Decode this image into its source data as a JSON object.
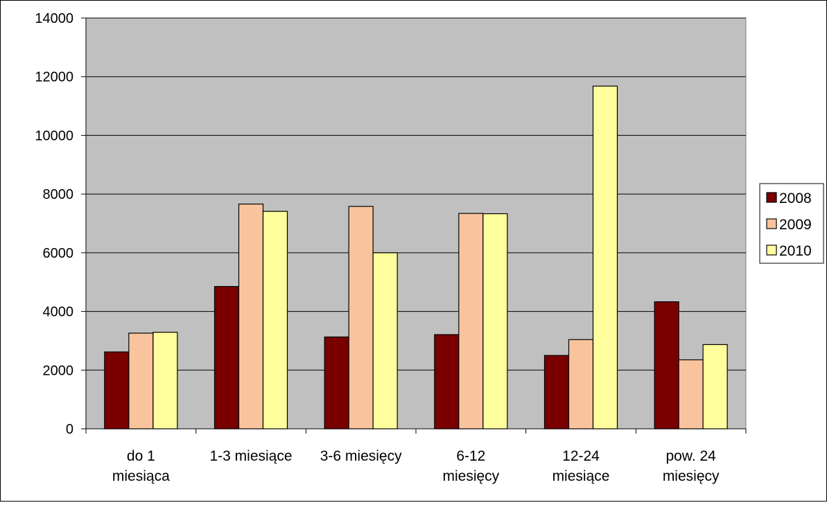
{
  "chart_data": {
    "type": "bar",
    "title": "",
    "xlabel": "",
    "ylabel": "",
    "ylim": [
      0,
      14000
    ],
    "yticks": [
      0,
      2000,
      4000,
      6000,
      8000,
      10000,
      12000,
      14000
    ],
    "grid": true,
    "legend_position": "right",
    "categories": [
      [
        "do 1",
        "miesiąca"
      ],
      [
        "1-3 miesiące"
      ],
      [
        "3-6 miesięcy"
      ],
      [
        "6-12",
        "miesięcy"
      ],
      [
        "12-24",
        "miesiące"
      ],
      [
        "pow. 24",
        "miesięcy"
      ]
    ],
    "series": [
      {
        "name": "2008",
        "color": "#7a0000",
        "values": [
          2620,
          4850,
          3130,
          3210,
          2500,
          4330
        ]
      },
      {
        "name": "2009",
        "color": "#f9c49d",
        "values": [
          3260,
          7660,
          7580,
          7340,
          3040,
          2350
        ]
      },
      {
        "name": "2010",
        "color": "#fefe9c",
        "values": [
          3290,
          7410,
          6000,
          7330,
          11680,
          2870
        ]
      }
    ],
    "plot_background": "#c0c0c0"
  }
}
